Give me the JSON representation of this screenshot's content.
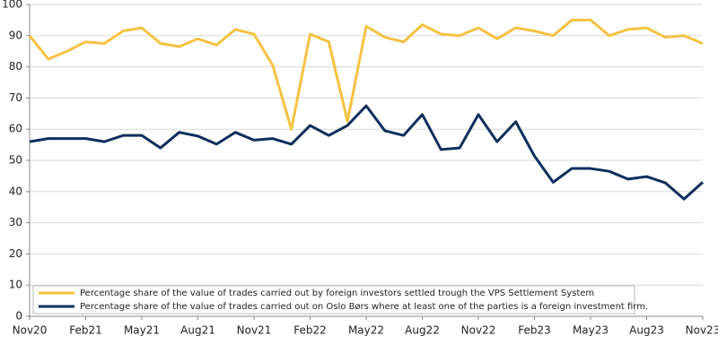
{
  "chart_data": {
    "type": "line",
    "categories": [
      "Nov20",
      null,
      null,
      "Feb21",
      null,
      null,
      "May21",
      null,
      null,
      "Aug21",
      null,
      null,
      "Nov21",
      null,
      null,
      "Feb22",
      null,
      null,
      "May22",
      null,
      null,
      "Aug22",
      null,
      null,
      "Nov22",
      null,
      null,
      "Feb23",
      null,
      null,
      "May23",
      null,
      null,
      "Aug23",
      null,
      null,
      "Nov23"
    ],
    "series": [
      {
        "name": "Percentage share of the value of trades carried out by foreign investors settled trough the VPS Settlement System",
        "color": "#f5c242",
        "values": [
          90,
          82.5,
          85,
          88,
          87.5,
          91.5,
          92.5,
          87.5,
          86.5,
          89,
          87,
          92,
          90.5,
          80.5,
          60,
          90.5,
          88,
          62.5,
          93,
          89.5,
          88,
          93.5,
          90.5,
          90,
          92.5,
          89,
          92.5,
          91.5,
          90,
          95,
          95,
          90,
          92,
          92.5,
          89.5,
          90,
          87.5
        ]
      },
      {
        "name": "Percentage share of the value of trades carried out on Oslo Børs where at least one of the parties is a foreign investment firm.",
        "color": "#0d2f5c",
        "values": [
          56,
          57,
          57,
          57,
          56,
          58,
          58,
          54,
          59,
          57.8,
          55.2,
          59,
          56.5,
          57,
          55.2,
          61.2,
          58,
          61.2,
          67.5,
          59.5,
          58,
          64.7,
          53.5,
          54,
          64.7,
          56,
          62.4,
          51.4,
          43,
          47.4,
          47.4,
          46.5,
          44,
          44.8,
          42.8,
          37.6,
          43
        ]
      }
    ],
    "ylim": [
      0,
      100
    ],
    "yticks": [
      0,
      10,
      20,
      30,
      40,
      50,
      60,
      70,
      80,
      90,
      100
    ],
    "grid": true,
    "legend": "lower-left"
  }
}
